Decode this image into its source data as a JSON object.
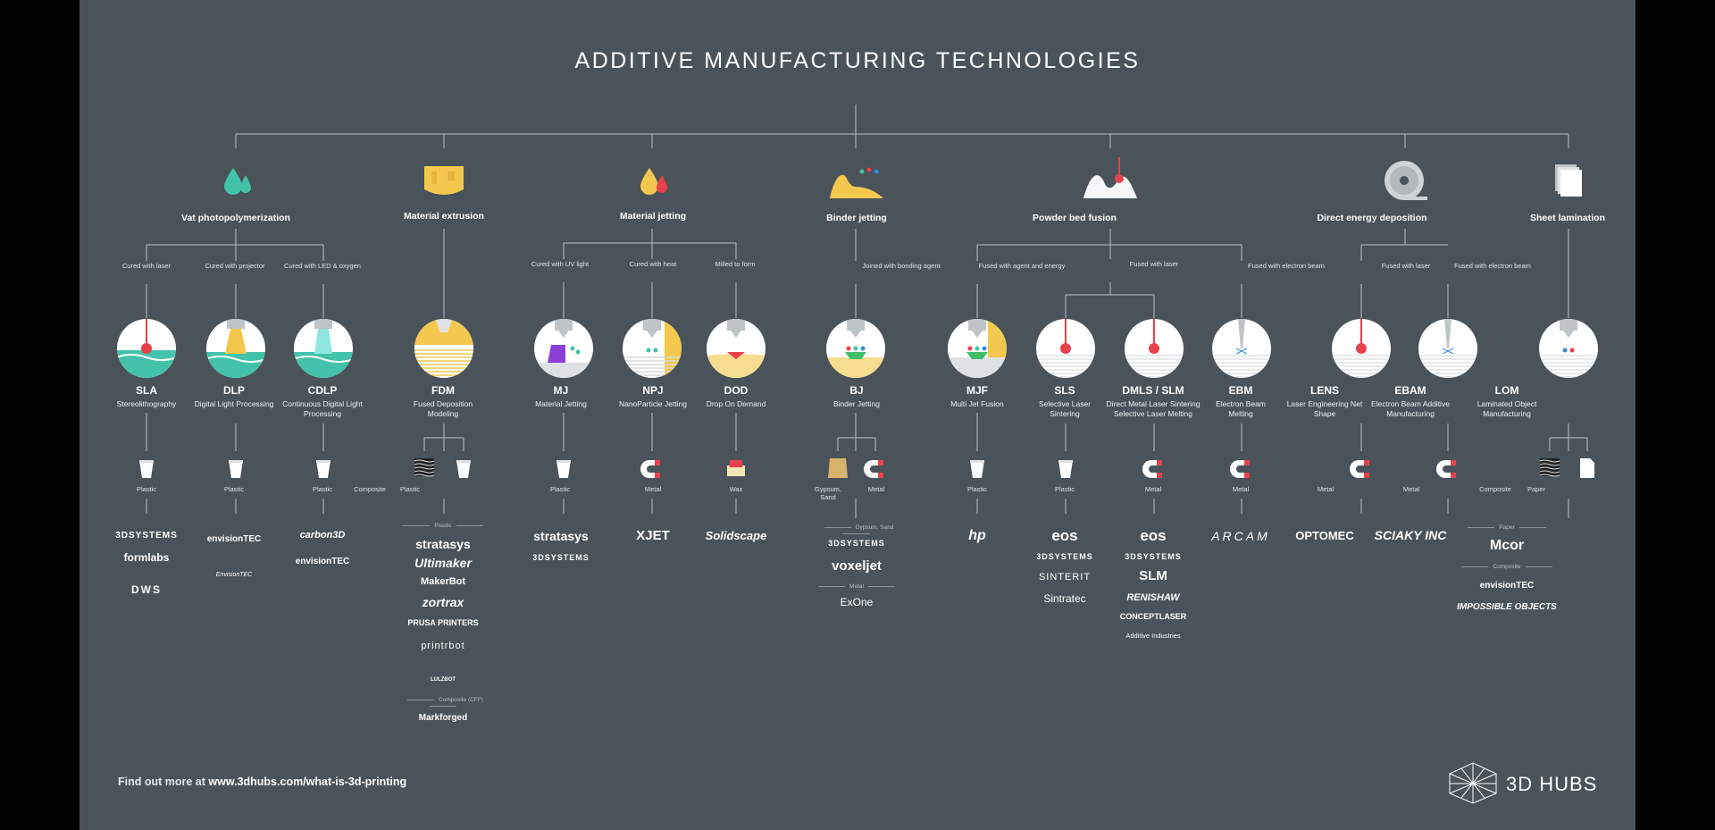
{
  "title": "ADDITIVE MANUFACTURING TECHNOLOGIES",
  "colors": {
    "background": "#4a5359",
    "teal": "#43c2ab",
    "yellow": "#f4c84e",
    "purple": "#8b3fd6",
    "red": "#e8414b",
    "blue": "#2f8fdc",
    "green": "#3fbf6a"
  },
  "categories": [
    {
      "label": "Vat photopolymerization",
      "icon": "water-drops-icon"
    },
    {
      "label": "Material extrusion",
      "icon": "extruded-material-icon"
    },
    {
      "label": "Material jetting",
      "icon": "jetting-drops-icon"
    },
    {
      "label": "Binder jetting",
      "icon": "binder-powder-icon"
    },
    {
      "label": "Powder bed fusion",
      "icon": "powder-laser-icon"
    },
    {
      "label": "Direct energy deposition",
      "icon": "wire-spool-icon"
    },
    {
      "label": "Sheet lamination",
      "icon": "paper-sheets-icon"
    }
  ],
  "conditions": [
    "Cured with laser",
    "Cured with projector",
    "Cured with LED & oxygen",
    "Cured with UV light",
    "Cured with heat",
    "Milled to form",
    "Joined with bonding agent",
    "Fused with agent and energy",
    "Fused with laser",
    "Fused with electron beam",
    "Fused with laser",
    "Fused with electron beam"
  ],
  "technologies": [
    {
      "abbr": "SLA",
      "full": "Stereolithography"
    },
    {
      "abbr": "DLP",
      "full": "Digital Light Processing"
    },
    {
      "abbr": "CDLP",
      "full": "Continuous Digital Light Processing"
    },
    {
      "abbr": "FDM",
      "full": "Fused Deposition Modeling"
    },
    {
      "abbr": "MJ",
      "full": "Material Jetting"
    },
    {
      "abbr": "NPJ",
      "full": "NanoParticle Jetting"
    },
    {
      "abbr": "DOD",
      "full": "Drop On Demand"
    },
    {
      "abbr": "BJ",
      "full": "Binder Jetting"
    },
    {
      "abbr": "MJF",
      "full": "Multi Jet Fusion"
    },
    {
      "abbr": "SLS",
      "full": "Selective Laser Sintering"
    },
    {
      "abbr": "DMLS / SLM",
      "full": "Direct Metal Laser Sintering Selective Laser Melting"
    },
    {
      "abbr": "EBM",
      "full": "Electron Beam Melting"
    },
    {
      "abbr": "LENS",
      "full": "Laser Engineering Net Shape"
    },
    {
      "abbr": "EBAM",
      "full": "Electron Beam Additive Manufacturing"
    },
    {
      "abbr": "LOM",
      "full": "Laminated Object Manufacturing"
    }
  ],
  "materials": {
    "plastic": "Plastic",
    "composite": "Composite",
    "metal": "Metal",
    "wax": "Wax",
    "gypsum_sand": "Gypsum, Sand",
    "paper": "Paper"
  },
  "subheads": {
    "fdm_plastic": "Plastic",
    "fdm_composite": "Composite (CFF)",
    "bj_gypsum": "Gypsum, Sand",
    "bj_metal": "Metal",
    "lom_paper": "Paper",
    "lom_composite": "Composite"
  },
  "brands": {
    "sla": [
      "3DSYSTEMS",
      "formlabs",
      "DWS"
    ],
    "dlp": [
      "envisionTEC",
      "EnvisionTEC"
    ],
    "cdlp": [
      "carbon3D",
      "envisionTEC"
    ],
    "fdm": [
      "stratasys",
      "Ultimaker",
      "MakerBot",
      "zortrax",
      "PRUSA PRINTERS",
      "printrbot",
      "LULZBOT"
    ],
    "fdm_composite": [
      "Markforged"
    ],
    "mj": [
      "stratasys",
      "3DSYSTEMS"
    ],
    "npj": [
      "XJET"
    ],
    "dod": [
      "Solidscape"
    ],
    "bj_gypsum": [
      "3DSYSTEMS",
      "voxeljet"
    ],
    "bj_metal": [
      "ExOne"
    ],
    "mjf": [
      "hp"
    ],
    "sls": [
      "eos",
      "3DSYSTEMS",
      "SINTERIT",
      "Sintratec"
    ],
    "dmls": [
      "eos",
      "3DSYSTEMS",
      "SLM",
      "RENISHAW",
      "CONCEPTLASER",
      "Additive Industries"
    ],
    "ebm": [
      "ARCAM"
    ],
    "lens": [
      "OPTOMEC"
    ],
    "ebam": [
      "SCIAKY INC"
    ],
    "lom_paper": [
      "Mcor"
    ],
    "lom_composite": [
      "envisionTEC",
      "IMPOSSIBLE OBJECTS"
    ]
  },
  "footer": {
    "prefix": "Find out more at ",
    "url": "www.3dhubs.com/what-is-3d-printing"
  },
  "logo": {
    "name": "3D HUBS",
    "icon": "hexagon-cube-icon"
  }
}
